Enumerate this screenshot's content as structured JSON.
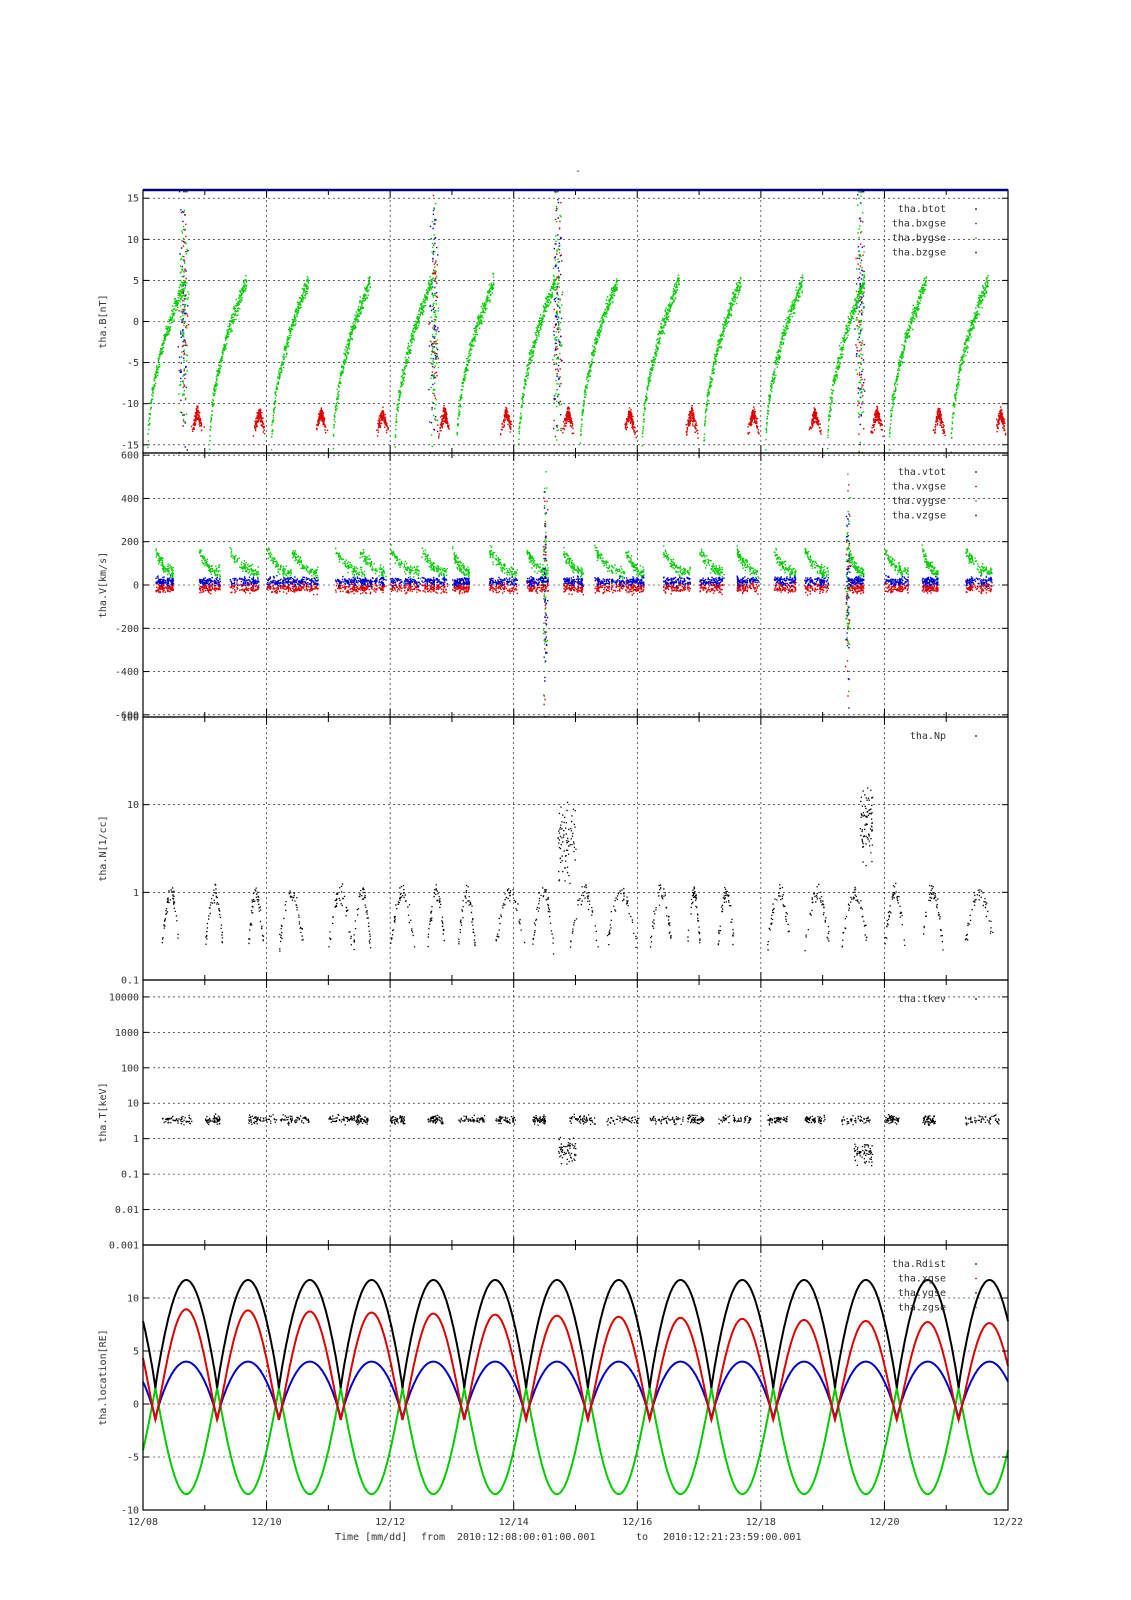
{
  "figure": {
    "title": "-",
    "footer": {
      "xlabel": "Time [mm/dd]",
      "from_label": "from",
      "from_value": "2010:12:08:00:01:00.001",
      "to_label": "to",
      "to_value": "2010:12:21:23:59:00.001"
    }
  },
  "colors": {
    "black": "#000000",
    "red": "#dd0000",
    "green": "#00cc00",
    "blue": "#0000cc",
    "frame_top": "#000080"
  },
  "chart_data": [
    {
      "type": "scatter",
      "ylabel": "tha.B[nT]",
      "yscale": "linear",
      "ylim": [
        -16,
        16
      ],
      "yticks": [
        15,
        10,
        5,
        0,
        -5,
        -10,
        -15
      ],
      "ytick_labels": [
        "15",
        "10",
        "5",
        "0",
        "-5",
        "-10",
        "-15"
      ],
      "xlim": [
        "12/08",
        "12/22"
      ],
      "xticks": [
        "12/08",
        "12/10",
        "12/12",
        "12/14",
        "12/16",
        "12/18",
        "12/20",
        "12/22"
      ],
      "grid": true,
      "legend_position": "top-right",
      "series": [
        {
          "name": "tha.btot",
          "color": "#000000"
        },
        {
          "name": "tha.bxgse",
          "color": "#dd0000"
        },
        {
          "name": "tha.bygse",
          "color": "#00cc00"
        },
        {
          "name": "tha.bzgse",
          "color": "#0000cc"
        }
      ]
    },
    {
      "type": "scatter",
      "ylabel": "tha.V[km/s]",
      "yscale": "linear",
      "ylim": [
        -610,
        610
      ],
      "yticks": [
        600,
        400,
        200,
        0,
        -200,
        -400,
        -600
      ],
      "ytick_labels": [
        "600",
        "400",
        "200",
        "0",
        "-200",
        "-400",
        "-600"
      ],
      "grid": true,
      "legend_position": "top-right",
      "series": [
        {
          "name": "tha.vtot",
          "color": "#000000"
        },
        {
          "name": "tha.vxgse",
          "color": "#dd0000"
        },
        {
          "name": "tha.vygse",
          "color": "#00cc00"
        },
        {
          "name": "tha.vzgse",
          "color": "#0000cc"
        }
      ]
    },
    {
      "type": "scatter",
      "ylabel": "tha.N[1/cc]",
      "yscale": "log",
      "ylim": [
        0.1,
        100
      ],
      "yticks": [
        100,
        10,
        1,
        0.1
      ],
      "ytick_labels": [
        "100",
        "10",
        "1",
        "0.1"
      ],
      "grid": true,
      "legend_position": "top-right",
      "series": [
        {
          "name": "tha.Np",
          "color": "#000000"
        }
      ]
    },
    {
      "type": "scatter",
      "ylabel": "tha.T[keV]",
      "yscale": "log",
      "ylim": [
        0.001,
        30000
      ],
      "yticks": [
        10000,
        1000,
        100,
        10,
        1,
        0.1,
        0.01,
        0.001
      ],
      "ytick_labels": [
        "10000",
        "1000",
        "100",
        "10",
        "1",
        "0.1",
        "0.01",
        "0.001"
      ],
      "grid": true,
      "legend_position": "top-right",
      "series": [
        {
          "name": "tha.tkev",
          "color": "#000000"
        }
      ]
    },
    {
      "type": "line",
      "ylabel": "tha.location[RE]",
      "yscale": "linear",
      "ylim": [
        -10,
        15
      ],
      "yticks": [
        10,
        5,
        0,
        -5,
        -10
      ],
      "ytick_labels": [
        "10",
        "5",
        "0",
        "-5",
        "-10"
      ],
      "grid": true,
      "legend_position": "top-right",
      "series": [
        {
          "name": "tha.Rdist",
          "color": "#000000"
        },
        {
          "name": "tha.xgse",
          "color": "#dd0000"
        },
        {
          "name": "tha.ygse",
          "color": "#0000cc"
        },
        {
          "name": "tha.zgse",
          "color": "#00cc00"
        }
      ]
    }
  ]
}
